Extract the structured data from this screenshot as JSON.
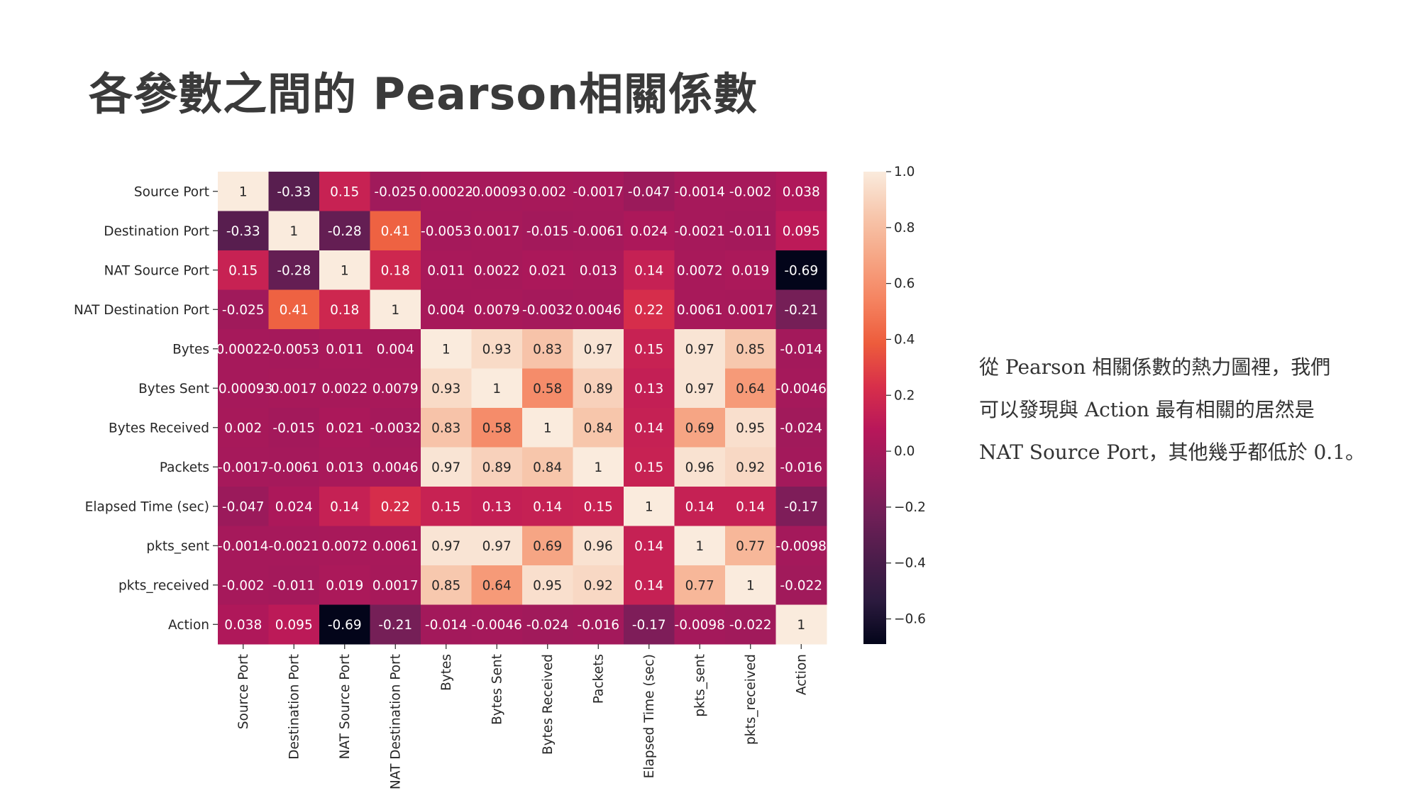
{
  "slide": {
    "title": "各參數之間的 Pearson相關係數",
    "description_lines": [
      "從 Pearson 相關係數的熱力圖裡，我們",
      "可以發現與 Action 最有相關的居然是",
      "NAT Source Port，其他幾乎都低於 0.1。"
    ]
  },
  "chart_data": {
    "type": "heatmap",
    "title": "",
    "xlabel": "",
    "ylabel": "",
    "labels": [
      "Source Port",
      "Destination Port",
      "NAT Source Port",
      "NAT Destination Port",
      "Bytes",
      "Bytes Sent",
      "Bytes Received",
      "Packets",
      "Elapsed Time (sec)",
      "pkts_sent",
      "pkts_received",
      "Action"
    ],
    "annotations": [
      [
        "1",
        "-0.33",
        "0.15",
        "-0.025",
        "0.00022",
        "-0.00093",
        "0.002",
        "-0.0017",
        "-0.047",
        "-0.0014",
        "-0.002",
        "0.038"
      ],
      [
        "-0.33",
        "1",
        "-0.28",
        "0.41",
        "-0.0053",
        "0.0017",
        "-0.015",
        "-0.0061",
        "0.024",
        "-0.0021",
        "-0.011",
        "0.095"
      ],
      [
        "0.15",
        "-0.28",
        "1",
        "0.18",
        "0.011",
        "0.0022",
        "0.021",
        "0.013",
        "0.14",
        "0.0072",
        "0.019",
        "-0.69"
      ],
      [
        "-0.025",
        "0.41",
        "0.18",
        "1",
        "0.004",
        "0.0079",
        "-0.0032",
        "0.0046",
        "0.22",
        "0.0061",
        "0.0017",
        "-0.21"
      ],
      [
        "0.00022",
        "-0.0053",
        "0.011",
        "0.004",
        "1",
        "0.93",
        "0.83",
        "0.97",
        "0.15",
        "0.97",
        "0.85",
        "-0.014"
      ],
      [
        "-0.00093",
        "0.0017",
        "0.0022",
        "0.0079",
        "0.93",
        "1",
        "0.58",
        "0.89",
        "0.13",
        "0.97",
        "0.64",
        "-0.0046"
      ],
      [
        "0.002",
        "-0.015",
        "0.021",
        "-0.0032",
        "0.83",
        "0.58",
        "1",
        "0.84",
        "0.14",
        "0.69",
        "0.95",
        "-0.024"
      ],
      [
        "-0.0017",
        "-0.0061",
        "0.013",
        "0.0046",
        "0.97",
        "0.89",
        "0.84",
        "1",
        "0.15",
        "0.96",
        "0.92",
        "-0.016"
      ],
      [
        "-0.047",
        "0.024",
        "0.14",
        "0.22",
        "0.15",
        "0.13",
        "0.14",
        "0.15",
        "1",
        "0.14",
        "0.14",
        "-0.17"
      ],
      [
        "-0.0014",
        "-0.0021",
        "0.0072",
        "0.0061",
        "0.97",
        "0.97",
        "0.69",
        "0.96",
        "0.14",
        "1",
        "0.77",
        "-0.0098"
      ],
      [
        "-0.002",
        "-0.011",
        "0.019",
        "0.0017",
        "0.85",
        "0.64",
        "0.95",
        "0.92",
        "0.14",
        "0.77",
        "1",
        "-0.022"
      ],
      [
        "0.038",
        "0.095",
        "-0.69",
        "-0.21",
        "-0.014",
        "-0.0046",
        "-0.024",
        "-0.016",
        "-0.17",
        "-0.0098",
        "-0.022",
        "1"
      ]
    ],
    "colorbar": {
      "min": -0.69,
      "max": 1.0,
      "ticks": [
        1.0,
        0.8,
        0.6,
        0.4,
        0.2,
        0.0,
        -0.2,
        -0.4,
        -0.6
      ],
      "tick_labels": [
        "1.0",
        "0.8",
        "0.6",
        "0.4",
        "0.2",
        "0.0",
        "−0.2",
        "−0.4",
        "−0.6"
      ]
    },
    "colormap": "rocket",
    "colormap_stops": [
      "#03051a",
      "#2b1a3e",
      "#4c1d4b",
      "#701f57",
      "#951b5b",
      "#b8175a",
      "#d82f4a",
      "#ed5c3c",
      "#f58360",
      "#f6a685",
      "#f7c7ad",
      "#faebdd"
    ],
    "annotation_colors": {
      "on_dark": "#ffffff",
      "on_light": "#262626"
    },
    "axis_text_color": "#262626"
  }
}
